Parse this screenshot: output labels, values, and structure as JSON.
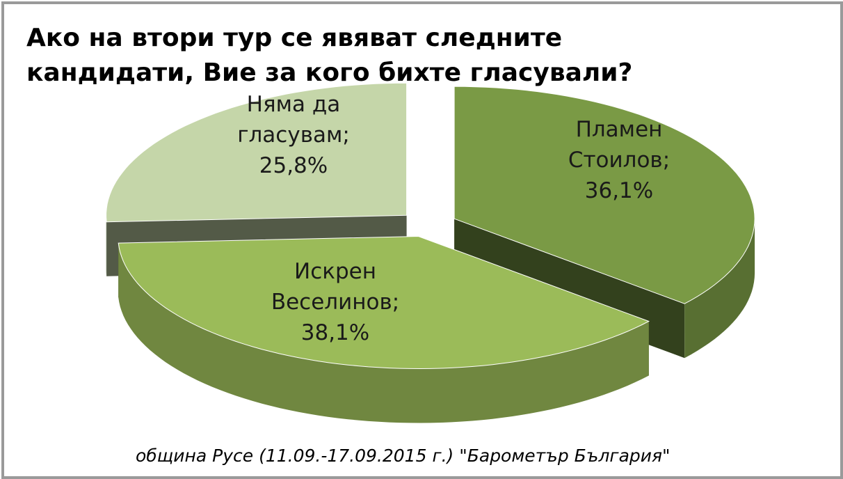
{
  "chart_data": {
    "type": "pie",
    "title": "Ако на втори тур се явяват следните кандидати, Вие за кого бихте гласували?",
    "source": "община Русе (11.09.-17.09.2015 г.) \"Барометър България\"",
    "categories": [
      "Пламен Стоилов",
      "Искрен Веселинов",
      "Няма да гласувам"
    ],
    "values": [
      36.1,
      38.1,
      25.8
    ],
    "value_labels": [
      "36,1%",
      "38,1%",
      "25,8%"
    ],
    "label_separator": ";",
    "colors": [
      "#7a9a45",
      "#9bbb59",
      "#c5d6a9"
    ]
  }
}
